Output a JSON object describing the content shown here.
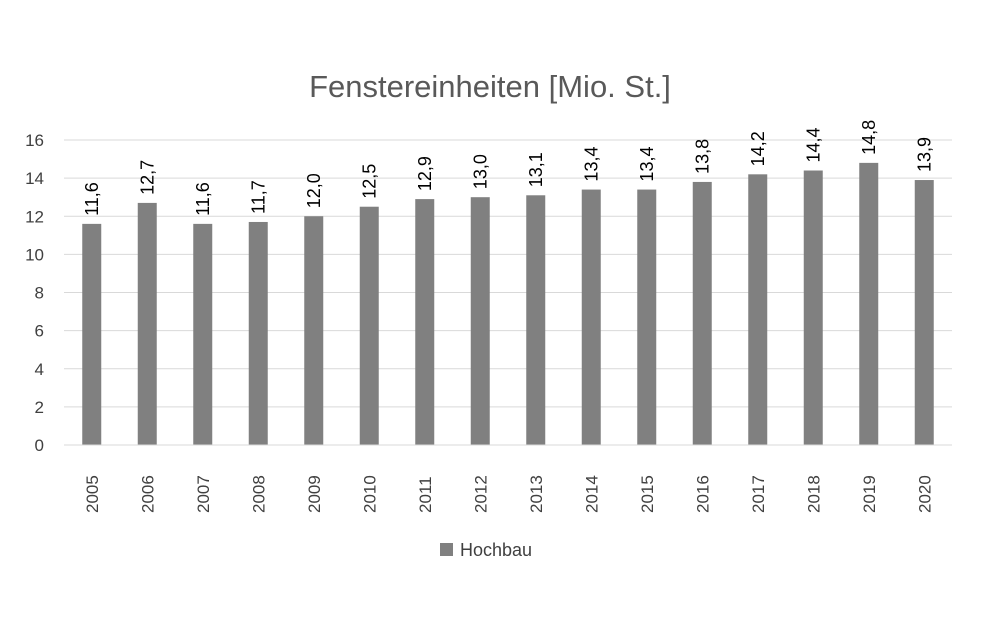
{
  "chart_data": {
    "type": "bar",
    "title": "Fenstereinheiten [Mio. St.]",
    "xlabel": "",
    "ylabel": "",
    "categories": [
      "2005",
      "2006",
      "2007",
      "2008",
      "2009",
      "2010",
      "2011",
      "2012",
      "2013",
      "2014",
      "2015",
      "2016",
      "2017",
      "2018",
      "2019",
      "2020"
    ],
    "series": [
      {
        "name": "Hochbau",
        "values": [
          11.6,
          12.7,
          11.6,
          11.7,
          12.0,
          12.5,
          12.9,
          13.0,
          13.1,
          13.4,
          13.4,
          13.8,
          14.2,
          14.4,
          14.8,
          13.9
        ],
        "labels": [
          "11,6",
          "12,7",
          "11,6",
          "11,7",
          "12,0",
          "12,5",
          "12,9",
          "13,0",
          "13,1",
          "13,4",
          "13,4",
          "13,8",
          "14,2",
          "14,4",
          "14,8",
          "13,9"
        ],
        "color": "#808080"
      }
    ],
    "ylim": [
      0,
      16
    ],
    "yticks": [
      0,
      2,
      4,
      6,
      8,
      10,
      12,
      14,
      16
    ],
    "grid": true,
    "legend_position": "bottom",
    "colors": {
      "gridline": "#d9d9d9",
      "bar": "#808080"
    }
  }
}
